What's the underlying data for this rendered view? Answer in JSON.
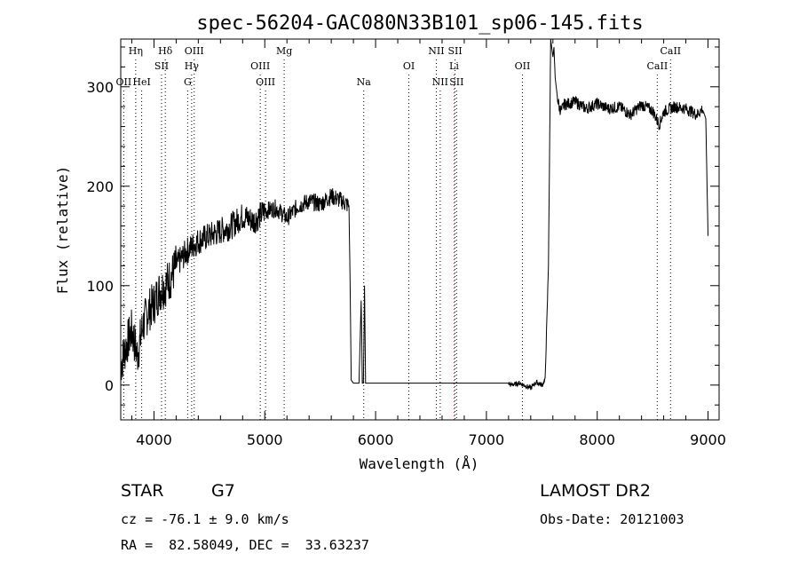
{
  "chart_data": {
    "type": "line",
    "title": "spec-56204-GAC080N33B101_sp06-145.fits",
    "xlabel": "Wavelength (Å)",
    "ylabel": "Flux (relative)",
    "xlim": [
      3700,
      9100
    ],
    "ylim": [
      -35,
      348
    ],
    "xticks": [
      4000,
      5000,
      6000,
      7000,
      8000,
      9000
    ],
    "xtick_labels": [
      "4000",
      "5000",
      "6000",
      "7000",
      "8000",
      "9000"
    ],
    "yticks": [
      0,
      100,
      200,
      300
    ],
    "ytick_labels": [
      "0",
      "100",
      "200",
      "300"
    ],
    "grid": false,
    "series": [
      {
        "x": [
          3700,
          3750,
          3800,
          3850,
          3900,
          3950,
          4000,
          4050,
          4100,
          4150,
          4200,
          4300,
          4400,
          4500,
          4600,
          4700,
          4800,
          4900,
          5000,
          5100,
          5200,
          5300,
          5400,
          5500,
          5600,
          5700,
          5760,
          5770,
          5780,
          5800,
          5820,
          5850,
          5870,
          5880,
          5890,
          5900,
          5910,
          5930,
          6000,
          6500,
          7000,
          7200,
          7220,
          7300,
          7400,
          7450,
          7500,
          7530,
          7560,
          7580,
          7600,
          7610,
          7620,
          7640,
          7660,
          7680,
          7700,
          7800,
          7900,
          8000,
          8100,
          8200,
          8300,
          8400,
          8500,
          8560,
          8600,
          8700,
          8800,
          8900,
          8950,
          8980,
          9000
        ],
        "y": [
          20,
          40,
          55,
          30,
          60,
          75,
          82,
          95,
          100,
          108,
          120,
          135,
          145,
          150,
          155,
          160,
          170,
          165,
          175,
          178,
          168,
          180,
          185,
          182,
          190,
          185,
          180,
          100,
          5,
          2,
          2,
          2,
          85,
          2,
          2,
          100,
          2,
          2,
          2,
          2,
          2,
          2,
          0,
          2,
          -3,
          3,
          0,
          5,
          120,
          348,
          330,
          340,
          310,
          290,
          278,
          276,
          282,
          285,
          278,
          283,
          278,
          280,
          272,
          282,
          276,
          262,
          275,
          280,
          278,
          272,
          278,
          268,
          150
        ]
      }
    ],
    "line_markers": [
      {
        "label": "Hη",
        "wl": 3835,
        "row": 0,
        "color": "#000000"
      },
      {
        "label": "Hδ",
        "wl": 4102,
        "row": 0,
        "color": "#000000"
      },
      {
        "label": "OIII",
        "wl": 4363,
        "row": 0,
        "color": "#000000"
      },
      {
        "label": "Mg",
        "wl": 5175,
        "row": 0,
        "color": "#000000"
      },
      {
        "label": "NII",
        "wl": 6548,
        "row": 0,
        "color": "#000000"
      },
      {
        "label": "SII",
        "wl": 6717,
        "row": 0,
        "color": "#000000"
      },
      {
        "label": "CaII",
        "wl": 8662,
        "row": 0,
        "color": "#000000"
      },
      {
        "label": "SII",
        "wl": 4068,
        "row": 1,
        "color": "#000000"
      },
      {
        "label": "Hγ",
        "wl": 4340,
        "row": 1,
        "color": "#000000"
      },
      {
        "label": "OIII",
        "wl": 4959,
        "row": 1,
        "color": "#000000"
      },
      {
        "label": "OI",
        "wl": 6300,
        "row": 1,
        "color": "#000000"
      },
      {
        "label": "Li",
        "wl": 6708,
        "row": 1,
        "color": "#cc0000"
      },
      {
        "label": "OII",
        "wl": 7325,
        "row": 1,
        "color": "#000000"
      },
      {
        "label": "CaII",
        "wl": 8542,
        "row": 1,
        "color": "#000000"
      },
      {
        "label": "OII",
        "wl": 3727,
        "row": 2,
        "color": "#000000"
      },
      {
        "label": "HeI",
        "wl": 3889,
        "row": 2,
        "color": "#000000"
      },
      {
        "label": "G",
        "wl": 4304,
        "row": 2,
        "color": "#000000"
      },
      {
        "label": "OIII",
        "wl": 5007,
        "row": 2,
        "color": "#000000"
      },
      {
        "label": "Na",
        "wl": 5893,
        "row": 2,
        "color": "#000000"
      },
      {
        "label": "NII",
        "wl": 6583,
        "row": 2,
        "color": "#000000"
      },
      {
        "label": "SII",
        "wl": 6731,
        "row": 2,
        "color": "#000000"
      }
    ]
  },
  "info": {
    "class_label": "STAR",
    "subclass_label": "G7",
    "survey": "LAMOST DR2",
    "cz": "cz = -76.1 ± 9.0 km/s",
    "obs_date": "Obs-Date: 20121003",
    "coords": "RA =  82.58049, DEC =  33.63237"
  },
  "colors": {
    "spectrum": "#000000",
    "axes": "#000000",
    "marker_black": "#000000",
    "marker_red": "#cc0000"
  }
}
